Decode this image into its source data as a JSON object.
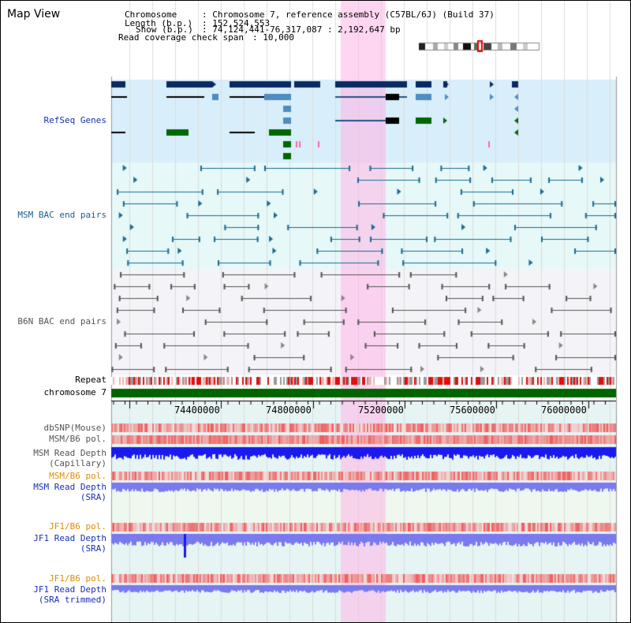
{
  "title": "Map View",
  "header": {
    "chromosome_key": "Chromosome",
    "chromosome_val": ": Chromosome 7, reference assembly (C57BL/6J) (Build 37)",
    "length_key": "Length (b.p.)",
    "length_val": ": 152,524,553",
    "show_key": "Show (b.p.)",
    "show_val": ": 74,124,441-76,317,087 : 2,192,647 bp",
    "coverage_key": "Read coverage check span",
    "coverage_val": ": 10,000"
  },
  "tracks": {
    "refseq": "RefSeq Genes",
    "msm_bac": "MSM BAC end pairs",
    "b6n_bac": "B6N BAC end pairs",
    "repeat": "Repeat",
    "chromosome": "chromosome 7",
    "dbsnp": "dbSNP(Mouse)",
    "msm_b6_pol": "MSM/B6 pol.",
    "msm_depth_cap_1": "MSM Read Depth",
    "msm_depth_cap_2": "(Capillary)",
    "msm_b6_pol_2": "MSM/B6 pol.",
    "msm_depth_sra_1": "MSM Read Depth",
    "msm_depth_sra_2": "(SRA)",
    "jf1_b6_pol": "JF1/B6 pol.",
    "jf1_depth_sra_1": "JF1 Read Depth",
    "jf1_depth_sra_2": "(SRA)",
    "jf1_b6_pol_2": "JF1/B6 pol.",
    "jf1_depth_trim_1": "JF1 Read Depth",
    "jf1_depth_trim_2": "(SRA trimmed)"
  },
  "axis": {
    "ticks": [
      "74400000",
      "74800000",
      "75200000",
      "75600000",
      "76000000"
    ]
  },
  "colors": {
    "gene_navy": "#0b2a63",
    "gene_blue": "#4f8dc0",
    "gene_green": "#006600",
    "msm_bac": "#1a6b8f",
    "b6n_bac": "#555555",
    "chromosome": "#006400",
    "highlight": "#ffccee",
    "refseq_bg": "#d8eefa",
    "msm_bg": "#e6f8f8",
    "b6n_bg": "#f4f4f8",
    "depth_blue": "#1a1aee",
    "depth_light": "#7a7aee",
    "pol_red": "#ee3333",
    "pol_pink": "#f4a0a0"
  }
}
